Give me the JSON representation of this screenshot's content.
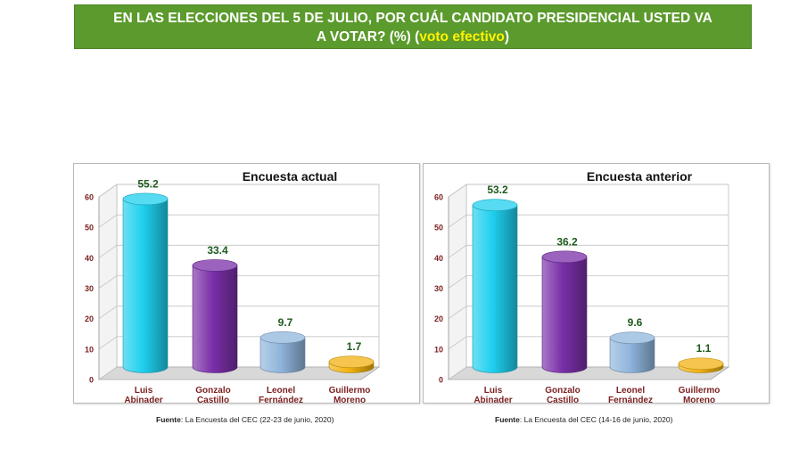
{
  "header": {
    "title_line1": "EN LAS ELECCIONES DEL 5 DE JULIO, POR CUÁL CANDIDATO PRESIDENCIAL USTED VA",
    "title_line2_prefix": "A VOTAR? (%) (",
    "title_highlight": "voto efectivo",
    "title_line2_suffix": ")",
    "background_color": "#5b9a2c",
    "highlight_color": "#fff200"
  },
  "colors": {
    "series": [
      "#1ecfee",
      "#7a2fa8",
      "#8fb5dc",
      "#f2b211"
    ],
    "value_label": "#1d5a1d",
    "category_label": "#7b1f1f"
  },
  "chart_data": [
    {
      "type": "bar",
      "title": "Encuesta actual",
      "categories": [
        [
          "Luis",
          "Abinader"
        ],
        [
          "Gonzalo",
          "Castillo"
        ],
        [
          "Leonel",
          "Fernández"
        ],
        [
          "Guillermo",
          "Moreno"
        ]
      ],
      "values": [
        55.2,
        33.4,
        9.7,
        1.7
      ],
      "value_labels": [
        "55.2",
        "33.4",
        "9.7",
        "1.7"
      ],
      "ylim": [
        0,
        60
      ],
      "yticks": [
        "0",
        "10",
        "20",
        "30",
        "40",
        "50",
        "60"
      ],
      "grid": true,
      "source_label": "Fuente",
      "source_text": ": La Encuesta del CEC (22-23 de junio, 2020)"
    },
    {
      "type": "bar",
      "title": "Encuesta anterior",
      "categories": [
        [
          "Luis",
          "Abinader"
        ],
        [
          "Gonzalo",
          "Castillo"
        ],
        [
          "Leonel",
          "Fernández"
        ],
        [
          "Guillermo",
          "Moreno"
        ]
      ],
      "values": [
        53.2,
        36.2,
        9.6,
        1.1
      ],
      "value_labels": [
        "53.2",
        "36.2",
        "9.6",
        "1.1"
      ],
      "ylim": [
        0,
        60
      ],
      "yticks": [
        "0",
        "10",
        "20",
        "30",
        "40",
        "50",
        "60"
      ],
      "grid": true,
      "source_label": "Fuente",
      "source_text": ": La Encuesta del CEC (14-16 de junio, 2020)"
    }
  ]
}
